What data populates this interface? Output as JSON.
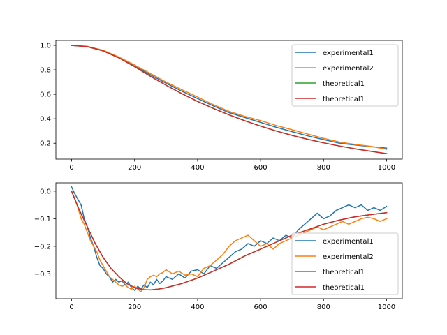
{
  "colors": {
    "experimental1": "#1f77b4",
    "experimental2": "#ff7f0e",
    "theoretical1_a": "#2ca02c",
    "theoretical1_b": "#d62728"
  },
  "chart_data": [
    {
      "type": "line",
      "title": "",
      "xlabel": "",
      "ylabel": "",
      "xlim": [
        -50,
        1050
      ],
      "ylim": [
        0.07,
        1.04
      ],
      "xticks": [
        0,
        200,
        400,
        600,
        800,
        1000
      ],
      "xtick_labels": [
        "0",
        "200",
        "400",
        "600",
        "800",
        "1000"
      ],
      "yticks": [
        0.2,
        0.4,
        0.6,
        0.8,
        1.0
      ],
      "ytick_labels": [
        "0.2",
        "0.4",
        "0.6",
        "0.8",
        "1.0"
      ],
      "grid": false,
      "legend_position": "upper right",
      "series": [
        {
          "name": "experimental1",
          "x": [
            0,
            50,
            100,
            150,
            200,
            250,
            300,
            350,
            400,
            450,
            500,
            550,
            600,
            650,
            700,
            750,
            800,
            850,
            900,
            950,
            1000
          ],
          "y": [
            1.0,
            0.99,
            0.955,
            0.9,
            0.83,
            0.76,
            0.69,
            0.625,
            0.565,
            0.505,
            0.45,
            0.41,
            0.37,
            0.33,
            0.295,
            0.26,
            0.23,
            0.2,
            0.185,
            0.172,
            0.16
          ]
        },
        {
          "name": "experimental2",
          "x": [
            0,
            50,
            100,
            150,
            200,
            250,
            300,
            350,
            400,
            450,
            500,
            550,
            600,
            650,
            700,
            750,
            800,
            850,
            900,
            950,
            1000
          ],
          "y": [
            1.0,
            0.992,
            0.96,
            0.905,
            0.84,
            0.77,
            0.7,
            0.637,
            0.578,
            0.515,
            0.46,
            0.42,
            0.385,
            0.345,
            0.31,
            0.275,
            0.24,
            0.21,
            0.19,
            0.175,
            0.15
          ]
        },
        {
          "name": "theoretical1",
          "x": [
            0,
            50,
            100,
            150,
            200,
            250,
            300,
            350,
            400,
            450,
            500,
            550,
            600,
            650,
            700,
            750,
            800,
            850,
            900,
            950,
            1000
          ],
          "y": [
            1.0,
            0.99,
            0.955,
            0.898,
            0.826,
            0.748,
            0.674,
            0.605,
            0.542,
            0.485,
            0.432,
            0.384,
            0.34,
            0.3,
            0.264,
            0.232,
            0.203,
            0.177,
            0.154,
            0.134,
            0.115
          ]
        },
        {
          "name": "theoretical1",
          "x": [
            0,
            50,
            100,
            150,
            200,
            250,
            300,
            350,
            400,
            450,
            500,
            550,
            600,
            650,
            700,
            750,
            800,
            850,
            900,
            950,
            1000
          ],
          "y": [
            1.0,
            0.99,
            0.955,
            0.898,
            0.826,
            0.748,
            0.674,
            0.605,
            0.542,
            0.485,
            0.432,
            0.384,
            0.34,
            0.3,
            0.264,
            0.232,
            0.203,
            0.177,
            0.154,
            0.134,
            0.115
          ]
        }
      ]
    },
    {
      "type": "line",
      "title": "",
      "xlabel": "",
      "ylabel": "",
      "xlim": [
        -50,
        1050
      ],
      "ylim": [
        -0.39,
        0.03
      ],
      "xticks": [
        0,
        200,
        400,
        600,
        800,
        1000
      ],
      "xtick_labels": [
        "0",
        "200",
        "400",
        "600",
        "800",
        "1000"
      ],
      "yticks": [
        -0.3,
        -0.2,
        -0.1,
        0.0
      ],
      "ytick_labels": [
        "−0.3",
        "−0.2",
        "−0.1",
        "0.0"
      ],
      "grid": false,
      "legend_position": "lower right",
      "series": [
        {
          "name": "experimental1",
          "x": [
            0,
            10,
            20,
            30,
            40,
            50,
            60,
            70,
            80,
            90,
            100,
            110,
            120,
            130,
            140,
            150,
            160,
            170,
            180,
            190,
            200,
            210,
            220,
            230,
            240,
            250,
            260,
            270,
            280,
            290,
            300,
            320,
            340,
            360,
            380,
            400,
            420,
            440,
            460,
            480,
            500,
            520,
            540,
            560,
            580,
            600,
            620,
            640,
            660,
            680,
            700,
            720,
            740,
            760,
            780,
            800,
            820,
            840,
            860,
            880,
            900,
            920,
            940,
            960,
            980,
            1000
          ],
          "y": [
            0.015,
            -0.01,
            -0.03,
            -0.05,
            -0.1,
            -0.13,
            -0.17,
            -0.2,
            -0.24,
            -0.27,
            -0.28,
            -0.3,
            -0.31,
            -0.33,
            -0.32,
            -0.33,
            -0.325,
            -0.34,
            -0.33,
            -0.35,
            -0.36,
            -0.345,
            -0.355,
            -0.34,
            -0.35,
            -0.33,
            -0.34,
            -0.32,
            -0.335,
            -0.325,
            -0.31,
            -0.32,
            -0.3,
            -0.315,
            -0.29,
            -0.285,
            -0.3,
            -0.27,
            -0.28,
            -0.26,
            -0.24,
            -0.22,
            -0.21,
            -0.19,
            -0.2,
            -0.18,
            -0.19,
            -0.17,
            -0.18,
            -0.16,
            -0.17,
            -0.14,
            -0.12,
            -0.1,
            -0.08,
            -0.1,
            -0.09,
            -0.07,
            -0.06,
            -0.05,
            -0.06,
            -0.05,
            -0.07,
            -0.06,
            -0.07,
            -0.055
          ]
        },
        {
          "name": "experimental2",
          "x": [
            0,
            10,
            20,
            30,
            40,
            50,
            60,
            70,
            80,
            90,
            100,
            110,
            120,
            130,
            140,
            150,
            160,
            170,
            180,
            190,
            200,
            210,
            220,
            230,
            240,
            250,
            260,
            270,
            280,
            290,
            300,
            320,
            340,
            360,
            380,
            400,
            420,
            440,
            460,
            480,
            500,
            520,
            540,
            560,
            580,
            600,
            620,
            640,
            660,
            680,
            700,
            720,
            740,
            760,
            780,
            800,
            820,
            840,
            860,
            880,
            900,
            920,
            940,
            960,
            980,
            1000
          ],
          "y": [
            0.0,
            -0.03,
            -0.06,
            -0.1,
            -0.12,
            -0.15,
            -0.18,
            -0.2,
            -0.22,
            -0.25,
            -0.27,
            -0.29,
            -0.31,
            -0.32,
            -0.33,
            -0.34,
            -0.345,
            -0.34,
            -0.35,
            -0.355,
            -0.345,
            -0.355,
            -0.365,
            -0.35,
            -0.32,
            -0.31,
            -0.305,
            -0.31,
            -0.3,
            -0.295,
            -0.285,
            -0.3,
            -0.29,
            -0.305,
            -0.3,
            -0.31,
            -0.28,
            -0.27,
            -0.25,
            -0.23,
            -0.2,
            -0.18,
            -0.17,
            -0.16,
            -0.18,
            -0.2,
            -0.19,
            -0.21,
            -0.19,
            -0.18,
            -0.17,
            -0.16,
            -0.15,
            -0.14,
            -0.13,
            -0.14,
            -0.13,
            -0.12,
            -0.11,
            -0.12,
            -0.11,
            -0.1,
            -0.095,
            -0.1,
            -0.11,
            -0.1
          ]
        },
        {
          "name": "theoretical1",
          "x": [
            0,
            25,
            50,
            75,
            100,
            125,
            150,
            175,
            200,
            225,
            250,
            275,
            300,
            350,
            400,
            450,
            500,
            550,
            600,
            650,
            700,
            750,
            800,
            850,
            900,
            950,
            1000
          ],
          "y": [
            0.0,
            -0.07,
            -0.13,
            -0.19,
            -0.24,
            -0.28,
            -0.31,
            -0.335,
            -0.35,
            -0.357,
            -0.358,
            -0.355,
            -0.35,
            -0.335,
            -0.315,
            -0.29,
            -0.265,
            -0.235,
            -0.21,
            -0.185,
            -0.16,
            -0.14,
            -0.12,
            -0.105,
            -0.093,
            -0.085,
            -0.078
          ]
        },
        {
          "name": "theoretical1",
          "x": [
            0,
            25,
            50,
            75,
            100,
            125,
            150,
            175,
            200,
            225,
            250,
            275,
            300,
            350,
            400,
            450,
            500,
            550,
            600,
            650,
            700,
            750,
            800,
            850,
            900,
            950,
            1000
          ],
          "y": [
            0.0,
            -0.07,
            -0.13,
            -0.19,
            -0.24,
            -0.28,
            -0.31,
            -0.335,
            -0.35,
            -0.357,
            -0.358,
            -0.355,
            -0.35,
            -0.335,
            -0.315,
            -0.29,
            -0.265,
            -0.235,
            -0.21,
            -0.185,
            -0.16,
            -0.14,
            -0.12,
            -0.105,
            -0.093,
            -0.085,
            -0.078
          ]
        }
      ]
    }
  ]
}
